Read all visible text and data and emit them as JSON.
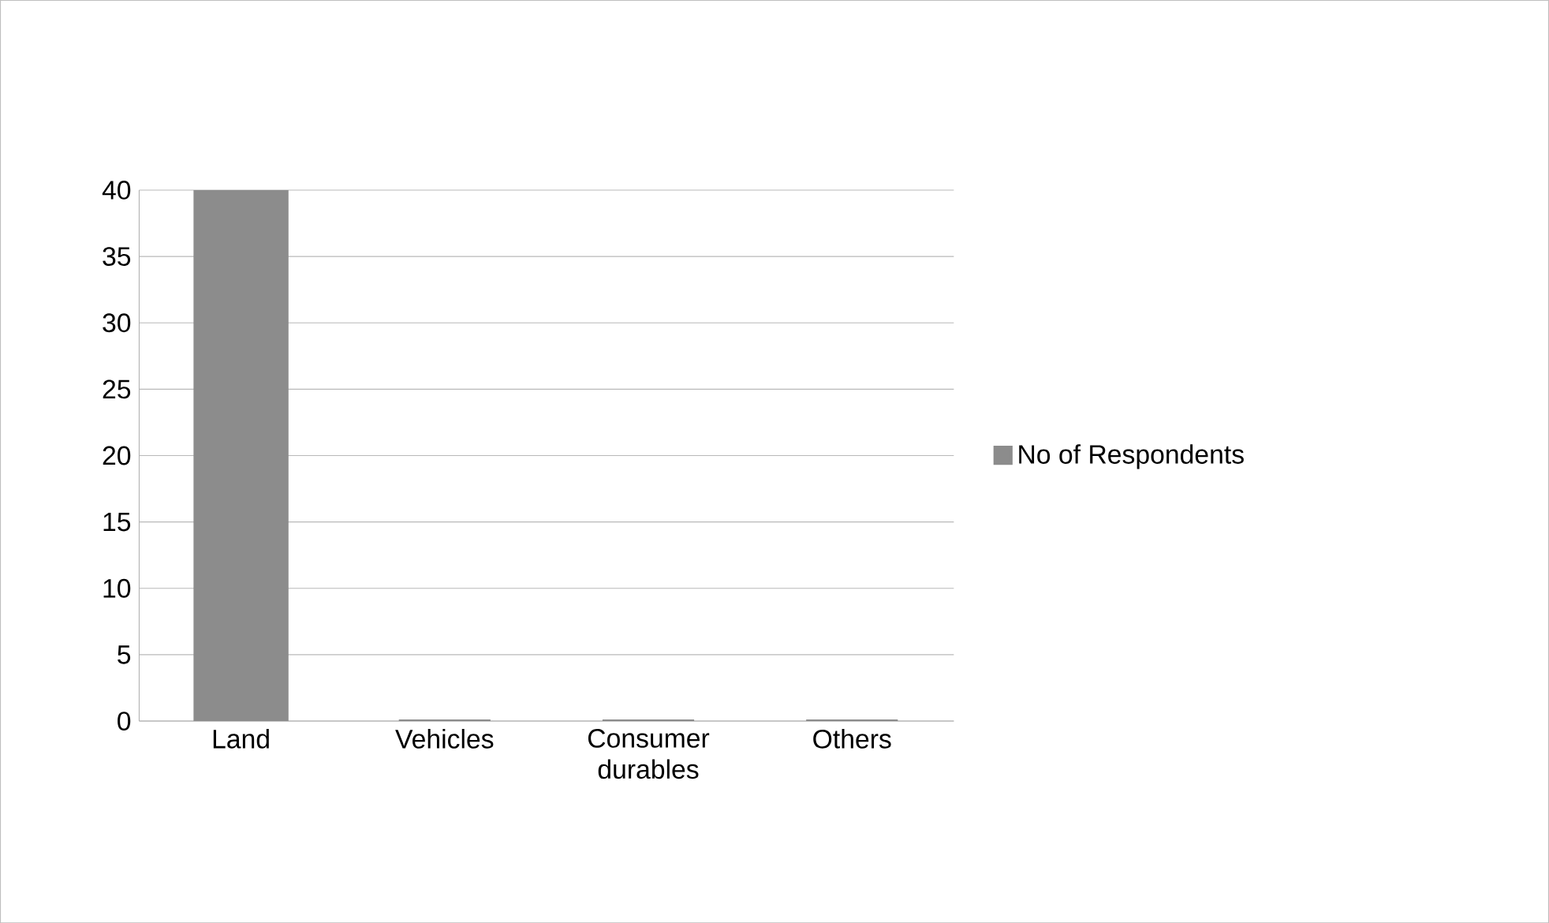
{
  "chart_data": {
    "type": "bar",
    "categories": [
      "Land",
      "Vehicles",
      "Consumer durables",
      "Others"
    ],
    "series": [
      {
        "name": "No of Respondents",
        "color": "#8c8c8c",
        "values": [
          40,
          0,
          0,
          0
        ]
      }
    ],
    "ylim": [
      0,
      40
    ],
    "yticks": [
      0,
      5,
      10,
      15,
      20,
      25,
      30,
      35,
      40
    ],
    "grid": "y",
    "legend": "right"
  }
}
